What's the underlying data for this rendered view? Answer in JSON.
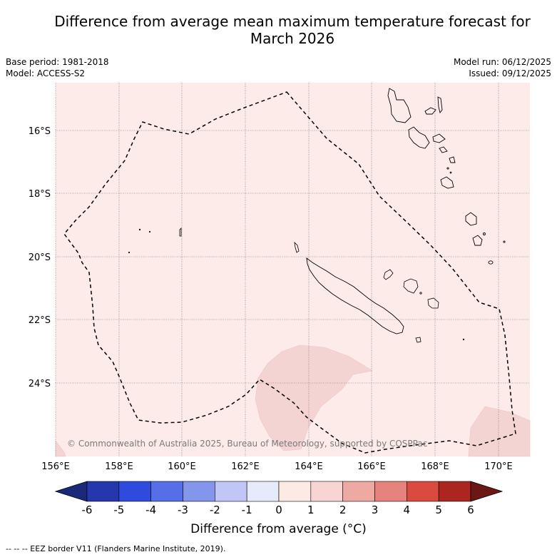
{
  "header": {
    "title_line1": "Difference from average mean maximum temperature forecast for",
    "title_line2": "March 2026",
    "base_period": "Base period: 1981-2018",
    "model": "Model: ACCESS-S2",
    "model_run": "Model run: 06/12/2025",
    "issued": "Issued: 09/12/2025"
  },
  "map": {
    "lat_labels": [
      "16°S",
      "18°S",
      "20°S",
      "22°S",
      "24°S"
    ],
    "lon_labels": [
      "156°E",
      "158°E",
      "160°E",
      "162°E",
      "164°E",
      "166°E",
      "168°E",
      "170°E"
    ],
    "copyright": "© Commonwealth of Australia 2025, Bureau of Meteorology, supported by COSPPac",
    "colors": {
      "background_anomaly": "#fcebe9",
      "warm_anomaly": "#f4d4d2",
      "grid": "#555555",
      "coast": "#000000"
    }
  },
  "colorbar": {
    "ticks": [
      "-6",
      "-5",
      "-4",
      "-3",
      "-2",
      "-1",
      "0",
      "1",
      "2",
      "3",
      "4",
      "5",
      "6"
    ],
    "colors": [
      "#1b2a78",
      "#2437ad",
      "#2e4bde",
      "#5570e6",
      "#8495ec",
      "#c0c6f5",
      "#e7eafb",
      "#fdeae5",
      "#f6d5d2",
      "#efa9a3",
      "#e5837c",
      "#db4a3f",
      "#ab2621",
      "#6b1713"
    ],
    "title": "Difference from average (°C)"
  },
  "footer": {
    "eez_note": "--  --  -- EEZ border V11 (Flanders Marine Institute, 2019)."
  }
}
